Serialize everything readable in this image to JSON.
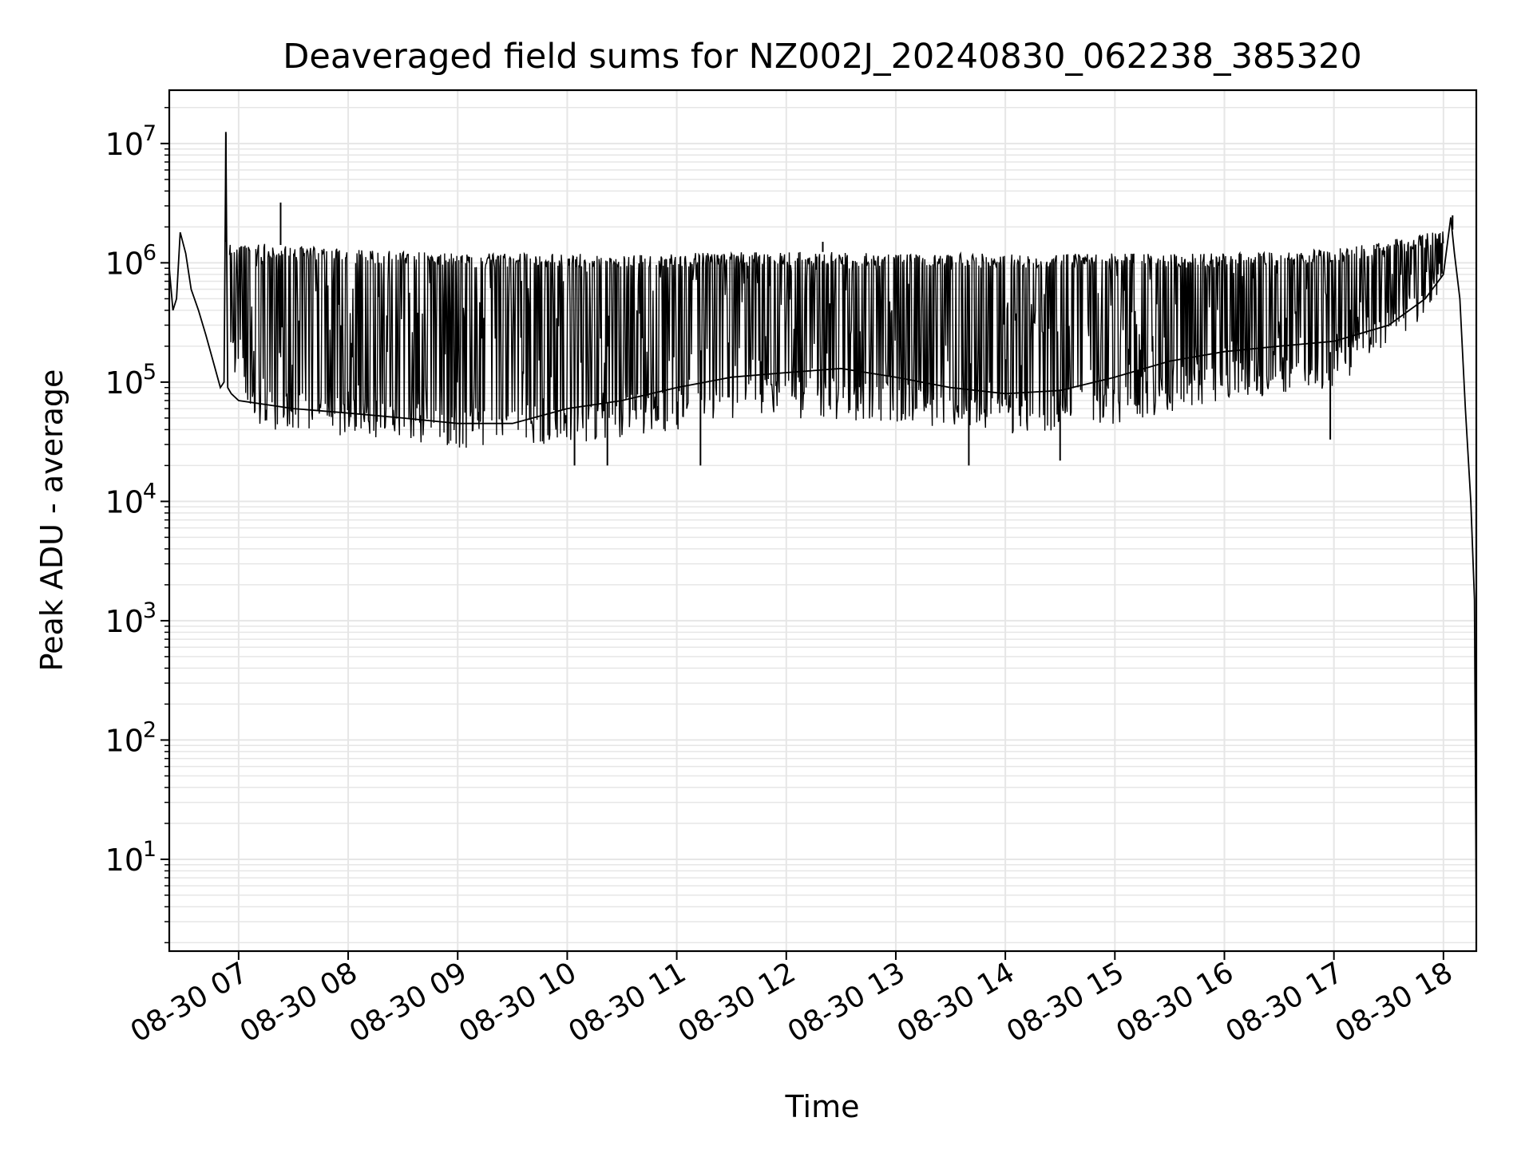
{
  "chart_data": {
    "type": "line",
    "title": "Deaveraged field sums for NZ002J_20240830_062238_385320",
    "xlabel": "Time",
    "ylabel": "Peak ADU - average",
    "x_tick_labels": [
      "08-30 07",
      "08-30 08",
      "08-30 09",
      "08-30 10",
      "08-30 11",
      "08-30 12",
      "08-30 13",
      "08-30 14",
      "08-30 15",
      "08-30 16",
      "08-30 17",
      "08-30 18"
    ],
    "x_range": [
      "2024-08-30 06:22",
      "2024-08-30 18:18"
    ],
    "y_scale": "log",
    "y_ticks": [
      10,
      100,
      1000,
      10000,
      100000,
      1000000,
      10000000
    ],
    "y_tick_bases": [
      "10",
      "10",
      "10",
      "10",
      "10",
      "10",
      "10"
    ],
    "y_tick_exponents": [
      "1",
      "2",
      "3",
      "4",
      "5",
      "6",
      "7"
    ],
    "ylim": [
      1.7,
      28000000
    ],
    "grid": true,
    "colors": {
      "line": "#000000",
      "grid": "#e6e6e6"
    },
    "series": [
      {
        "x": [
          "2024-08-30 06:22",
          "2024-08-30 06:24",
          "2024-08-30 06:26",
          "2024-08-30 06:28",
          "2024-08-30 06:31",
          "2024-08-30 06:34",
          "2024-08-30 06:38",
          "2024-08-30 06:42",
          "2024-08-30 06:46",
          "2024-08-30 06:50",
          "2024-08-30 06:52",
          "2024-08-30 06:53",
          "2024-08-30 06:54",
          "2024-08-30 06:56",
          "2024-08-30 07:00",
          "2024-08-30 07:30",
          "2024-08-30 08:00",
          "2024-08-30 08:30",
          "2024-08-30 09:00",
          "2024-08-30 09:30",
          "2024-08-30 10:00",
          "2024-08-30 10:30",
          "2024-08-30 11:00",
          "2024-08-30 11:30",
          "2024-08-30 12:00",
          "2024-08-30 12:30",
          "2024-08-30 13:00",
          "2024-08-30 13:30",
          "2024-08-30 14:00",
          "2024-08-30 14:30",
          "2024-08-30 15:00",
          "2024-08-30 15:30",
          "2024-08-30 16:00",
          "2024-08-30 16:30",
          "2024-08-30 17:00",
          "2024-08-30 17:30",
          "2024-08-30 17:50",
          "2024-08-30 18:00",
          "2024-08-30 18:04",
          "2024-08-30 18:06",
          "2024-08-30 18:09",
          "2024-08-30 18:12",
          "2024-08-30 18:15",
          "2024-08-30 18:17",
          "2024-08-30 18:18"
        ],
        "y": [
          900000,
          400000,
          500000,
          1800000,
          1200000,
          600000,
          400000,
          250000,
          150000,
          90000,
          100000,
          12000000,
          90000,
          80000,
          70000,
          60000,
          55000,
          50000,
          45000,
          45000,
          60000,
          70000,
          90000,
          110000,
          120000,
          130000,
          110000,
          90000,
          80000,
          85000,
          110000,
          150000,
          180000,
          200000,
          220000,
          300000,
          500000,
          800000,
          2400000,
          1200000,
          500000,
          60000,
          10000,
          1500,
          3
        ]
      }
    ],
    "band_upper": {
      "x": [
        "2024-08-30 06:55",
        "2024-08-30 08:00",
        "2024-08-30 09:00",
        "2024-08-30 10:00",
        "2024-08-30 11:00",
        "2024-08-30 12:00",
        "2024-08-30 13:00",
        "2024-08-30 14:00",
        "2024-08-30 15:00",
        "2024-08-30 16:00",
        "2024-08-30 17:00",
        "2024-08-30 17:45",
        "2024-08-30 18:00"
      ],
      "y": [
        1500000,
        1300000,
        1200000,
        1200000,
        1200000,
        1250000,
        1200000,
        1200000,
        1200000,
        1200000,
        1300000,
        1700000,
        1900000
      ]
    },
    "band_lower": {
      "x": [
        "2024-08-30 06:55",
        "2024-08-30 07:10",
        "2024-08-30 08:00",
        "2024-08-30 09:00",
        "2024-08-30 10:00",
        "2024-08-30 11:00",
        "2024-08-30 12:00",
        "2024-08-30 13:00",
        "2024-08-30 14:00",
        "2024-08-30 15:00",
        "2024-08-30 16:00",
        "2024-08-30 17:00",
        "2024-08-30 17:45",
        "2024-08-30 18:00"
      ],
      "y": [
        150000,
        40000,
        35000,
        28000,
        30000,
        40000,
        50000,
        45000,
        35000,
        45000,
        70000,
        90000,
        300000,
        600000
      ]
    },
    "spikes": [
      {
        "x": "2024-08-30 06:53",
        "y": 12500000
      },
      {
        "x": "2024-08-30 07:23",
        "y": 3200000
      },
      {
        "x": "2024-08-30 12:20",
        "y": 1500000
      },
      {
        "x": "2024-08-30 18:05",
        "y": 2500000
      }
    ],
    "dips": [
      {
        "x": "2024-08-30 10:04",
        "y": 20000
      },
      {
        "x": "2024-08-30 10:22",
        "y": 20000
      },
      {
        "x": "2024-08-30 11:13",
        "y": 20000
      },
      {
        "x": "2024-08-30 13:40",
        "y": 20000
      },
      {
        "x": "2024-08-30 14:30",
        "y": 22000
      },
      {
        "x": "2024-08-30 16:58",
        "y": 33000
      }
    ]
  }
}
